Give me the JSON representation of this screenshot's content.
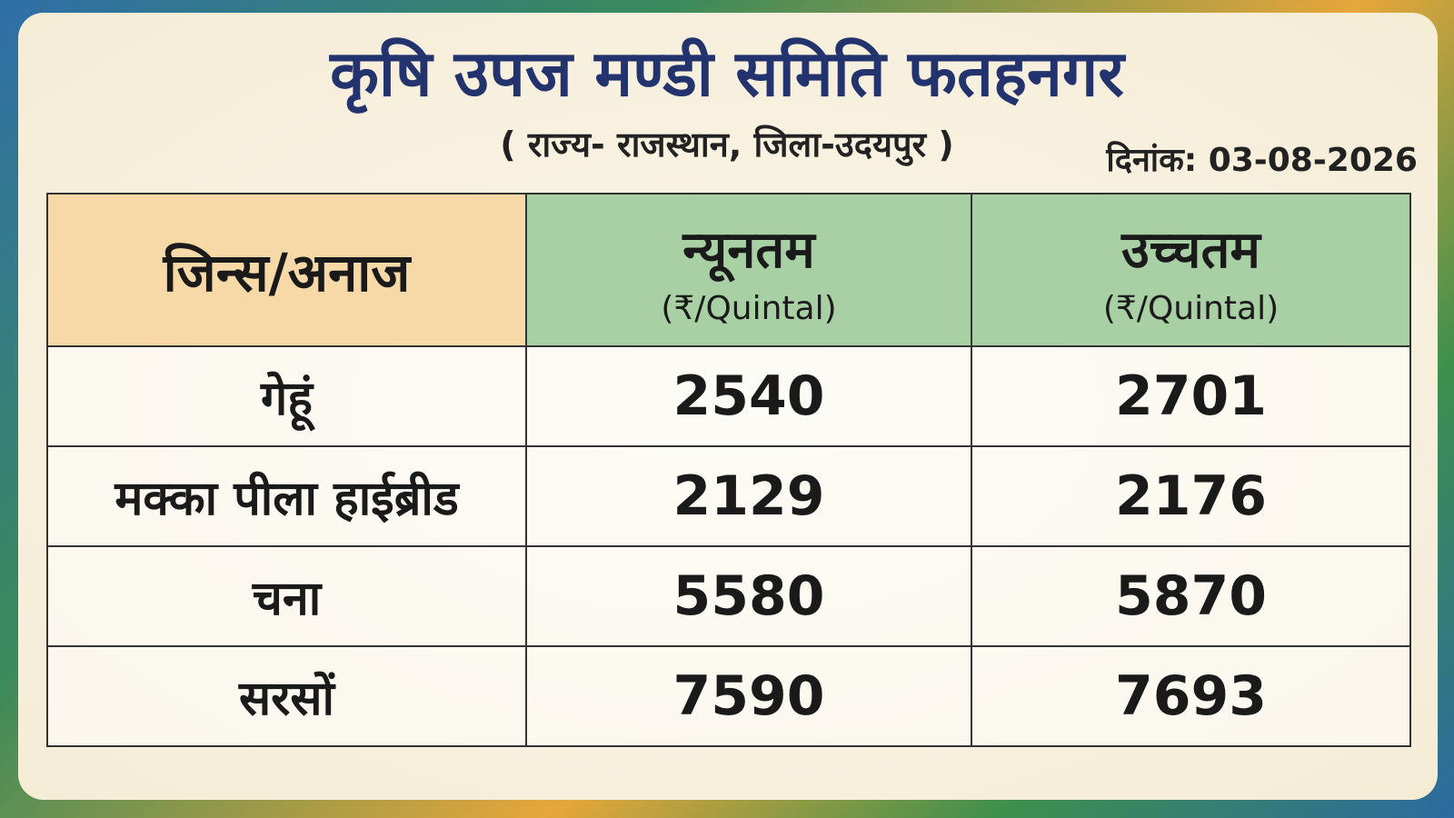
{
  "header": {
    "title": "कृषि उपज मण्डी समिति फतहनगर",
    "subtitle": "( राज्य- राजस्थान, जिला-उदयपुर )",
    "date": "दिनांक: 03-08-2026"
  },
  "table": {
    "columns": [
      {
        "label": "जिन्स/अनाज"
      },
      {
        "label": "न्यूनतम",
        "unit": "(₹/Quintal)"
      },
      {
        "label": "उच्चतम",
        "unit": "(₹/Quintal)"
      }
    ],
    "rows": [
      [
        "गेहूं",
        2540,
        2701
      ],
      [
        "मक्का पीला हाईब्रीड",
        2129,
        2176
      ],
      [
        "चना",
        5580,
        5870
      ],
      [
        "सरसों",
        7590,
        7693
      ]
    ]
  }
}
